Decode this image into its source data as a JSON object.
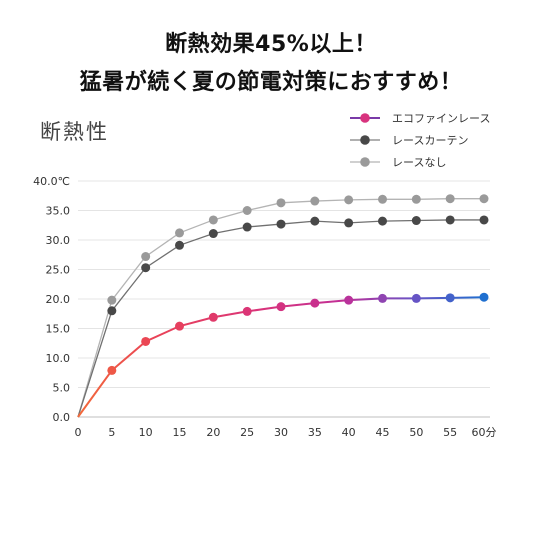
{
  "headline": {
    "line1": "断熱効果45%以上！",
    "line2": "猛暑が続く夏の節電対策におすすめ！"
  },
  "chart_data": {
    "type": "line",
    "title": "断熱性",
    "x": [
      "0",
      "5",
      "10",
      "15",
      "20",
      "25",
      "30",
      "35",
      "40",
      "45",
      "50",
      "55",
      "60分"
    ],
    "ylim": [
      0,
      40
    ],
    "y_ticks": [
      "0.0",
      "5.0",
      "10.0",
      "15.0",
      "20.0",
      "25.0",
      "30.0",
      "35.0",
      "40.0℃"
    ],
    "grid": true,
    "legend_position": "top-right",
    "series": [
      {
        "name": "エコファインレース",
        "color": "gradient red-magenta-blue",
        "values": [
          0,
          7.9,
          12.8,
          15.4,
          16.9,
          17.9,
          18.7,
          19.3,
          19.8,
          20.1,
          20.1,
          20.2,
          20.3
        ]
      },
      {
        "name": "レースカーテン",
        "color": "#505050",
        "values": [
          0,
          18.0,
          25.3,
          29.1,
          31.1,
          32.2,
          32.7,
          33.2,
          32.9,
          33.2,
          33.3,
          33.4,
          33.4
        ]
      },
      {
        "name": "レースなし",
        "color": "#9a9a9a",
        "values": [
          0,
          19.8,
          27.2,
          31.2,
          33.4,
          35.0,
          36.3,
          36.6,
          36.8,
          36.9,
          36.9,
          37.0,
          37.0
        ]
      }
    ]
  }
}
